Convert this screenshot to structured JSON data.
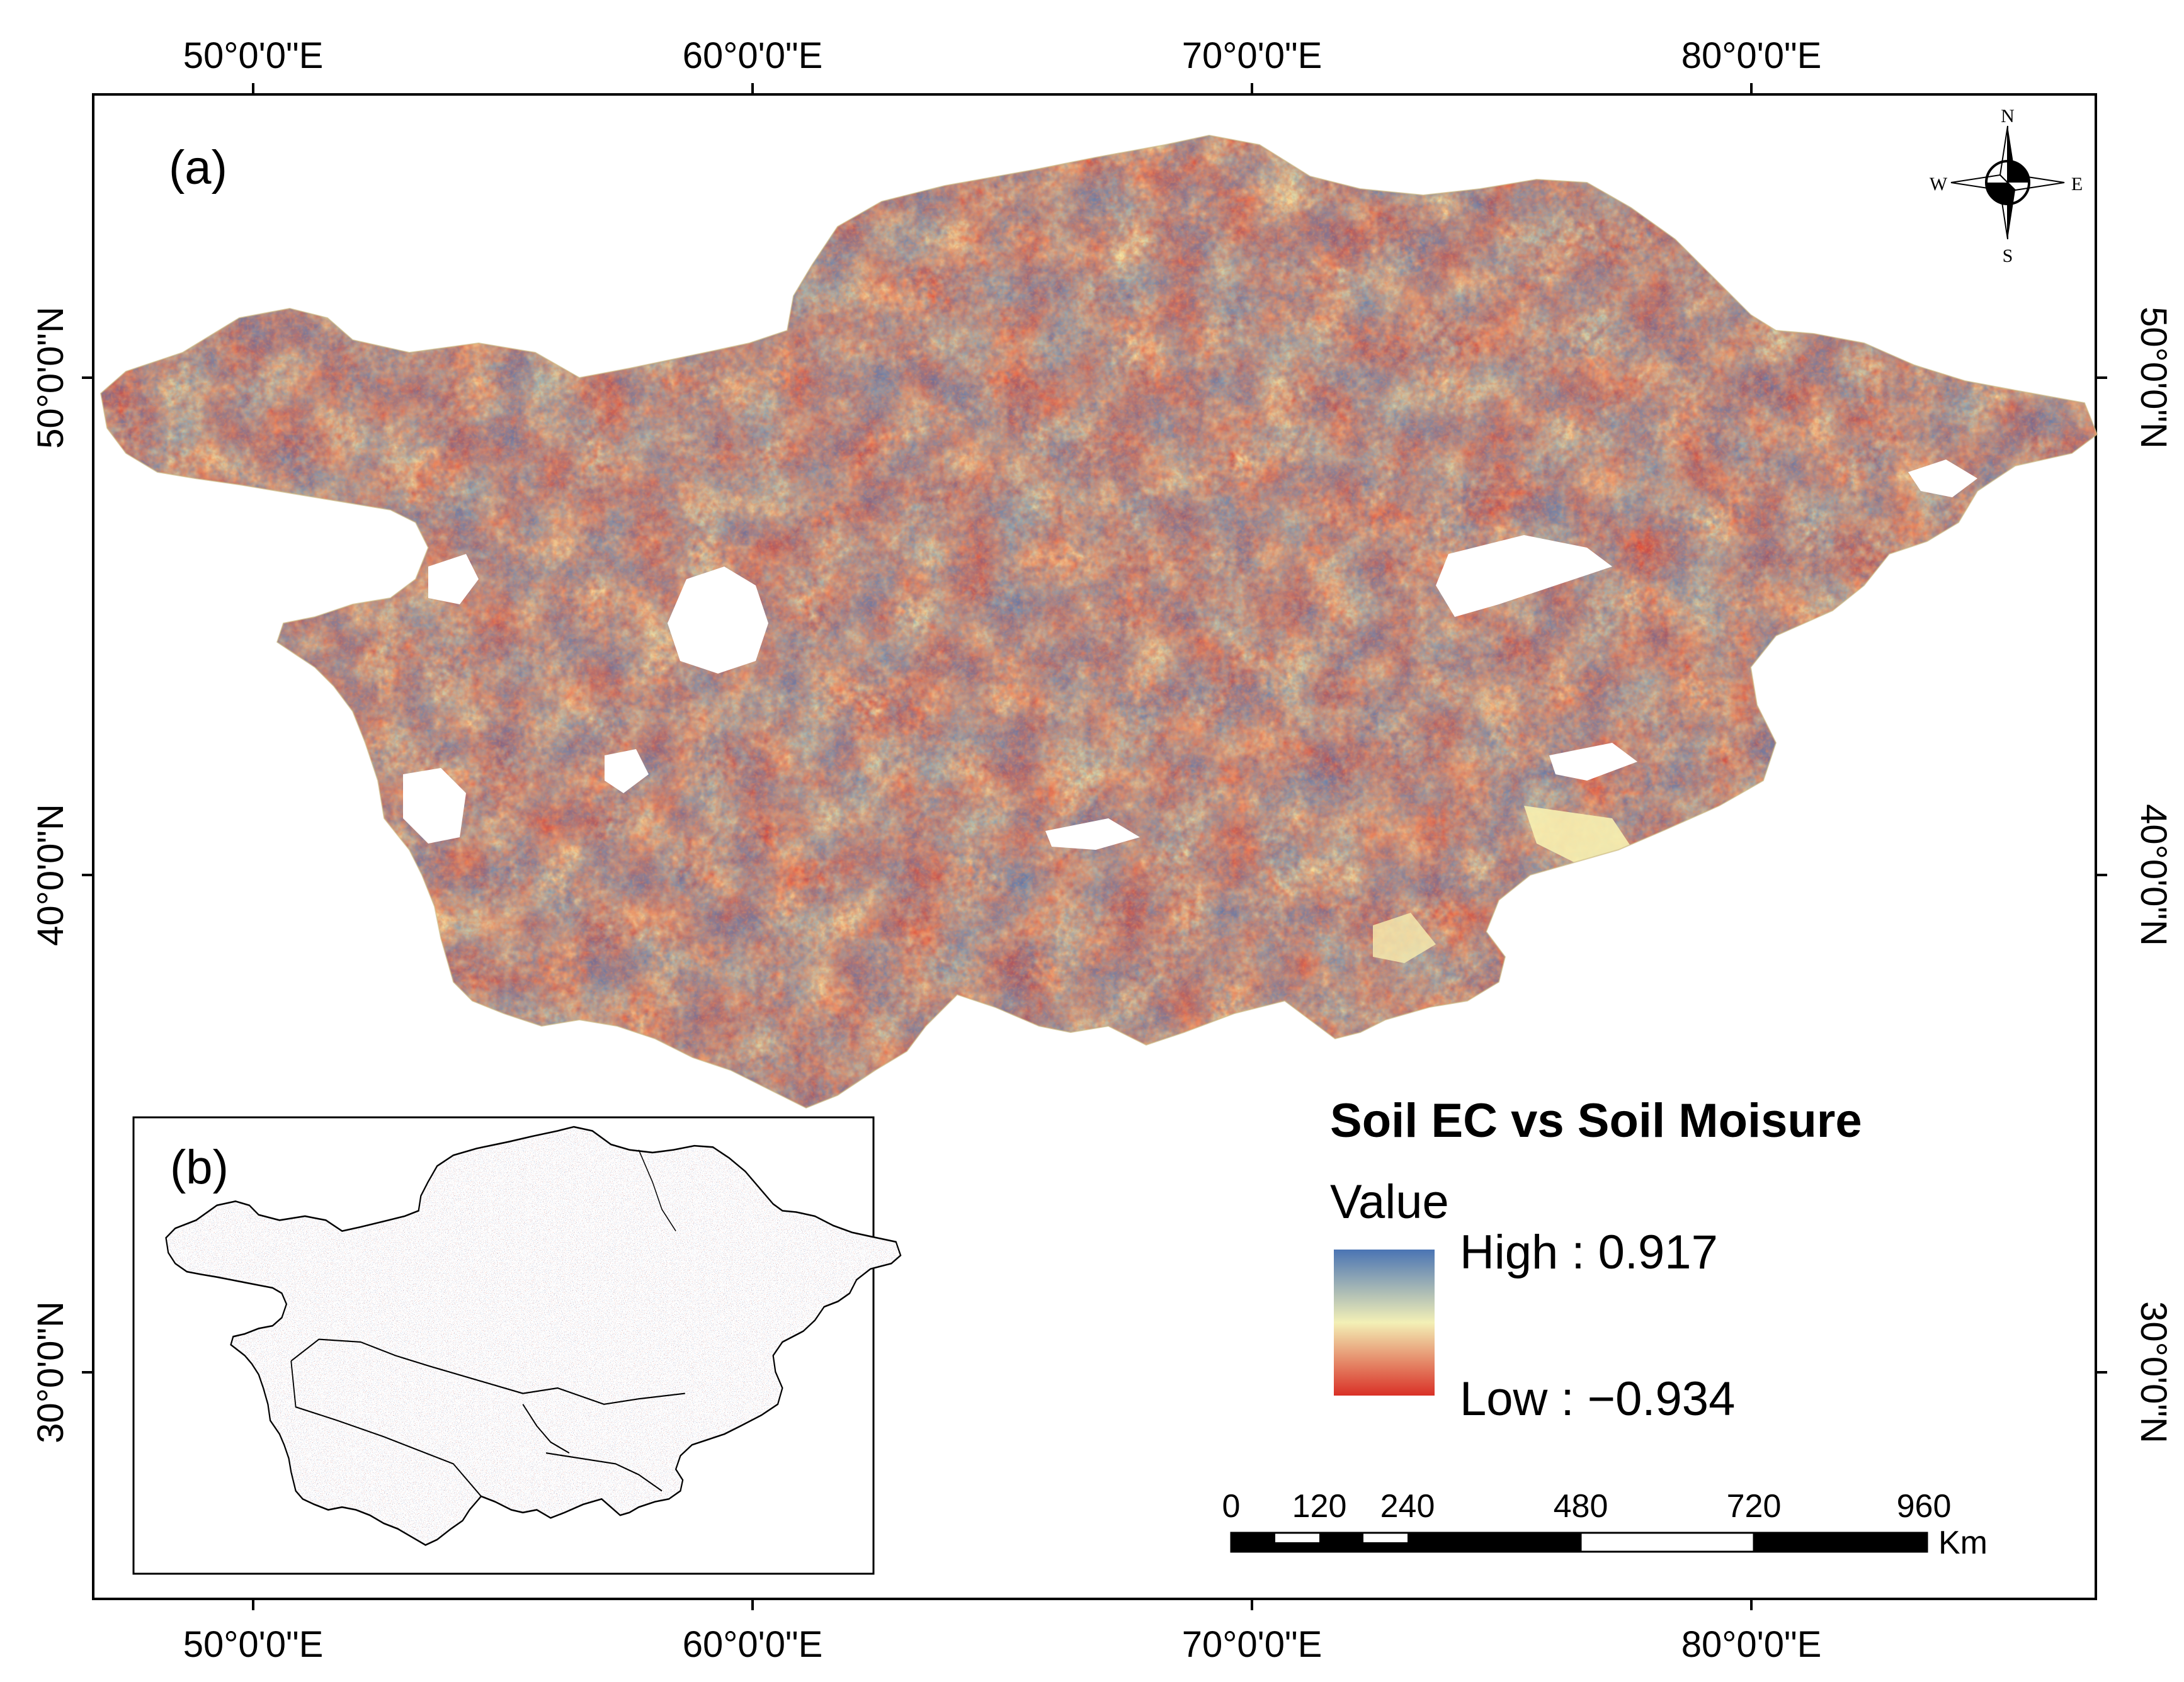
{
  "map": {
    "panel_a_label": "(a)",
    "panel_b_label": "(b)",
    "longitude_labels": [
      "50°0'0\"E",
      "60°0'0\"E",
      "70°0'0\"E",
      "80°0'0\"E"
    ],
    "latitude_labels": [
      "50°0'0\"N",
      "40°0'0\"N",
      "30°0'0\"N"
    ]
  },
  "compass": {
    "north": "N",
    "south": "S",
    "east": "E",
    "west": "W"
  },
  "legend": {
    "title": "Soil EC vs Soil Moisure",
    "subtitle": "Value",
    "high_label": "High : 0.917",
    "low_label": "Low : −0.934",
    "high_value": 0.917,
    "low_value": -0.934,
    "colors": {
      "high": "#4a74b4",
      "mid": "#f3f0b6",
      "low": "#d93026"
    }
  },
  "scale_bar": {
    "labels": [
      "0",
      "120",
      "240",
      "480",
      "720",
      "960"
    ],
    "unit": "Km"
  }
}
